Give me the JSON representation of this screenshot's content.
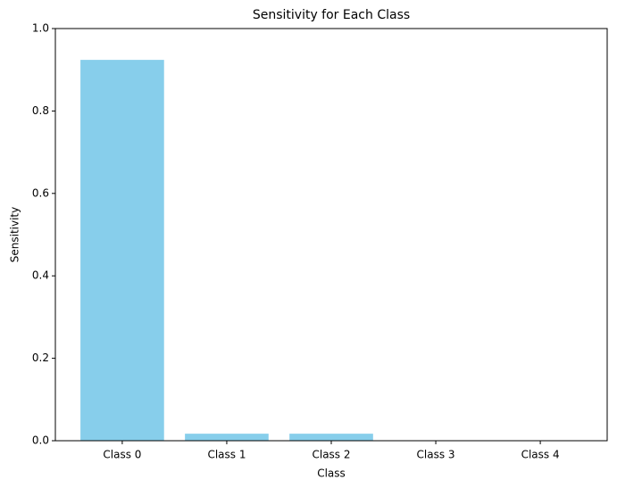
{
  "chart_data": {
    "type": "bar",
    "title": "Sensitivity for Each Class",
    "x_label": "Class",
    "y_label": "Sensitivity",
    "categories": [
      "Class 0",
      "Class 1",
      "Class 2",
      "Class 3",
      "Class 4"
    ],
    "values": [
      0.924,
      0.017,
      0.017,
      0,
      0
    ],
    "color": "#87ceeb",
    "ylim": [
      0,
      1
    ],
    "yticks": [
      {
        "value": 0,
        "label": "0.0"
      },
      0.2,
      0.4,
      0.6,
      0.8,
      {
        "value": 1,
        "label": "1.0"
      }
    ],
    "grid": false
  }
}
